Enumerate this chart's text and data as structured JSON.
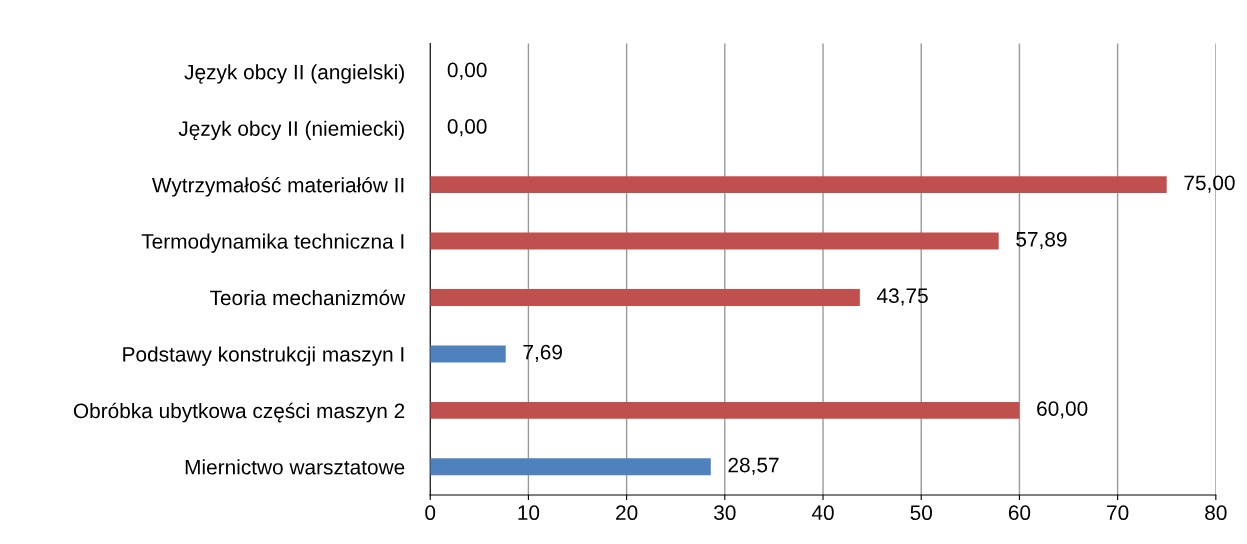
{
  "chart_data": {
    "type": "bar",
    "orientation": "horizontal",
    "categories": [
      "Język obcy II (angielski)",
      "Język obcy II (niemiecki)",
      "Wytrzymałość materiałów II",
      "Termodynamika techniczna I",
      "Teoria mechanizmów",
      "Podstawy konstrukcji maszyn I",
      "Obróbka ubytkowa części maszyn 2",
      "Miernictwo warsztatowe"
    ],
    "values": [
      0.0,
      0.0,
      75.0,
      57.89,
      43.75,
      7.69,
      60.0,
      28.57
    ],
    "colors": [
      "#c0504d",
      "#c0504d",
      "#c0504d",
      "#c0504d",
      "#c0504d",
      "#4f81bd",
      "#c0504d",
      "#4f81bd"
    ],
    "value_labels": [
      "0,00",
      "0,00",
      "75,00",
      "57,89",
      "43,75",
      "7,69",
      "60,00",
      "28,57"
    ],
    "xlim": [
      0,
      80
    ],
    "xticks": [
      0,
      10,
      20,
      30,
      40,
      50,
      60,
      70,
      80
    ],
    "grid": "x",
    "legend": false
  }
}
